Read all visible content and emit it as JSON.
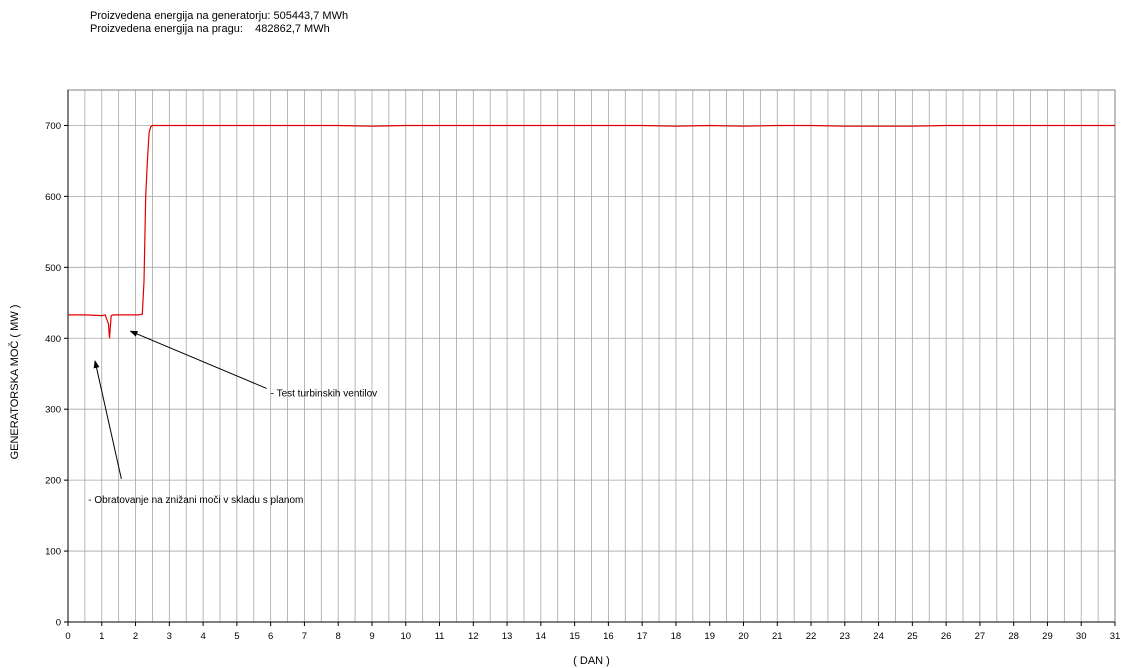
{
  "header": {
    "generator_label": "Proizvedena energija na generatorju:",
    "generator_value": "505443,7 MWh",
    "threshold_label": "Proizvedena energija na pragu:",
    "threshold_value": "482862,7 MWh"
  },
  "chart_data": {
    "type": "line",
    "xlabel": "( DAN )",
    "ylabel": "GENERATORSKA MOČ ( MW )",
    "xlim": [
      0,
      31
    ],
    "ylim": [
      0,
      750
    ],
    "xticks": [
      "0",
      "1",
      "2",
      "3",
      "4",
      "5",
      "6",
      "7",
      "8",
      "9",
      "10",
      "11",
      "12",
      "13",
      "14",
      "15",
      "16",
      "17",
      "18",
      "19",
      "20",
      "21",
      "22",
      "23",
      "24",
      "25",
      "26",
      "27",
      "28",
      "29",
      "30",
      "31"
    ],
    "yticks": [
      "0",
      "100",
      "200",
      "300",
      "400",
      "500",
      "600",
      "700"
    ],
    "grid": true,
    "series_color": "#e00000",
    "series": [
      {
        "x": [
          0,
          0.5,
          1.0,
          1.1,
          1.2,
          1.23,
          1.28,
          1.35,
          1.6,
          1.9,
          2.1,
          2.2,
          2.25,
          2.3,
          2.35,
          2.4,
          2.45,
          2.5,
          2.6,
          3,
          4,
          5,
          6,
          7,
          8,
          9,
          10,
          11,
          12,
          13,
          14,
          15,
          16,
          17,
          18,
          19,
          20,
          21,
          22,
          23,
          24,
          25,
          26,
          27,
          28,
          29,
          30,
          31
        ],
        "values": [
          433,
          433,
          432,
          433,
          420,
          400,
          432,
          433,
          433,
          433,
          433,
          434,
          480,
          600,
          650,
          690,
          698,
          700,
          700,
          700,
          700,
          700,
          700,
          700,
          700,
          699,
          700,
          700,
          700,
          700,
          700,
          700,
          700,
          700,
          699,
          700,
          699,
          700,
          700,
          699,
          699,
          699,
          700,
          700,
          700,
          700,
          700,
          700
        ]
      }
    ],
    "annotations": [
      {
        "text": "- Test turbinskih ventilov",
        "text_x": 6.0,
        "text_y": 318,
        "arrow_to_x": 1.85,
        "arrow_to_y": 410
      },
      {
        "text": "- Obratovanje na znižani moči v skladu s planom",
        "text_x": 0.6,
        "text_y": 168,
        "arrow_to_x": 0.8,
        "arrow_to_y": 368
      }
    ]
  }
}
